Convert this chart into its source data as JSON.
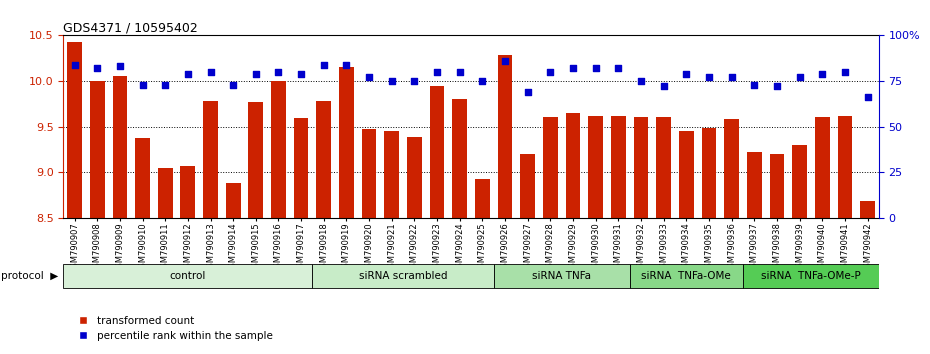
{
  "title": "GDS4371 / 10595402",
  "samples": [
    "GSM790907",
    "GSM790908",
    "GSM790909",
    "GSM790910",
    "GSM790911",
    "GSM790912",
    "GSM790913",
    "GSM790914",
    "GSM790915",
    "GSM790916",
    "GSM790917",
    "GSM790918",
    "GSM790919",
    "GSM790920",
    "GSM790921",
    "GSM790922",
    "GSM790923",
    "GSM790924",
    "GSM790925",
    "GSM790926",
    "GSM790927",
    "GSM790928",
    "GSM790929",
    "GSM790930",
    "GSM790931",
    "GSM790932",
    "GSM790933",
    "GSM790934",
    "GSM790935",
    "GSM790936",
    "GSM790937",
    "GSM790938",
    "GSM790939",
    "GSM790940",
    "GSM790941",
    "GSM790942"
  ],
  "bar_values": [
    10.43,
    10.0,
    10.06,
    9.37,
    9.05,
    9.07,
    9.78,
    8.88,
    9.77,
    10.0,
    9.59,
    9.78,
    10.15,
    9.47,
    9.45,
    9.38,
    9.95,
    9.8,
    8.92,
    10.28,
    9.2,
    9.6,
    9.65,
    9.62,
    9.62,
    9.6,
    9.6,
    9.45,
    9.48,
    9.58,
    9.22,
    9.2,
    9.3,
    9.6,
    9.62,
    8.68
  ],
  "percentile_values": [
    84,
    82,
    83,
    73,
    73,
    79,
    80,
    73,
    79,
    80,
    79,
    84,
    84,
    77,
    75,
    75,
    80,
    80,
    75,
    86,
    69,
    80,
    82,
    82,
    82,
    75,
    72,
    79,
    77,
    77,
    73,
    72,
    77,
    79,
    80,
    66
  ],
  "groups": [
    {
      "label": "control",
      "start": 0,
      "end": 11,
      "color": "#d8f0d8"
    },
    {
      "label": "siRNA scrambled",
      "start": 11,
      "end": 19,
      "color": "#c8ecc8"
    },
    {
      "label": "siRNA TNFa",
      "start": 19,
      "end": 25,
      "color": "#a8e0a8"
    },
    {
      "label": "siRNA  TNFa-OMe",
      "start": 25,
      "end": 30,
      "color": "#88d888"
    },
    {
      "label": "siRNA  TNFa-OMe-P",
      "start": 30,
      "end": 36,
      "color": "#55cc55"
    }
  ],
  "bar_color": "#cc2200",
  "percentile_color": "#0000cc",
  "ylim_left": [
    8.5,
    10.5
  ],
  "ylim_right": [
    0,
    100
  ],
  "yticks_left": [
    8.5,
    9.0,
    9.5,
    10.0,
    10.5
  ],
  "yticks_right": [
    0,
    25,
    50,
    75,
    100
  ],
  "ytick_labels_right": [
    "0",
    "25",
    "50",
    "75",
    "100%"
  ],
  "grid_values": [
    9.0,
    9.5,
    10.0
  ],
  "bar_width": 0.65
}
